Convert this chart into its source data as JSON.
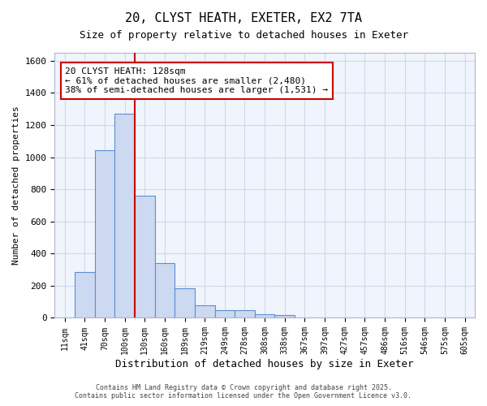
{
  "title_line1": "20, CLYST HEATH, EXETER, EX2 7TA",
  "title_line2": "Size of property relative to detached houses in Exeter",
  "xlabel": "Distribution of detached houses by size in Exeter",
  "ylabel": "Number of detached properties",
  "categories": [
    "11sqm",
    "41sqm",
    "70sqm",
    "100sqm",
    "130sqm",
    "160sqm",
    "189sqm",
    "219sqm",
    "249sqm",
    "278sqm",
    "308sqm",
    "338sqm",
    "367sqm",
    "397sqm",
    "427sqm",
    "457sqm",
    "486sqm",
    "516sqm",
    "546sqm",
    "575sqm",
    "605sqm"
  ],
  "values": [
    0,
    285,
    1045,
    1270,
    760,
    340,
    185,
    80,
    50,
    50,
    25,
    20,
    0,
    0,
    0,
    0,
    0,
    0,
    0,
    0,
    0
  ],
  "bar_color": "#ccd9f0",
  "bar_edge_color": "#5b8fd4",
  "grid_color": "#d0d8e8",
  "background_color": "#ffffff",
  "plot_bg_color": "#f0f4fc",
  "vline_x": 4.0,
  "vline_color": "#cc0000",
  "annotation_text": "20 CLYST HEATH: 128sqm\n← 61% of detached houses are smaller (2,480)\n38% of semi-detached houses are larger (1,531) →",
  "annotation_box_color": "#ffffff",
  "annotation_box_edge_color": "#cc0000",
  "ylim": [
    0,
    1650
  ],
  "yticks": [
    0,
    200,
    400,
    600,
    800,
    1000,
    1200,
    1400,
    1600
  ],
  "footer_line1": "Contains HM Land Registry data © Crown copyright and database right 2025.",
  "footer_line2": "Contains public sector information licensed under the Open Government Licence v3.0."
}
